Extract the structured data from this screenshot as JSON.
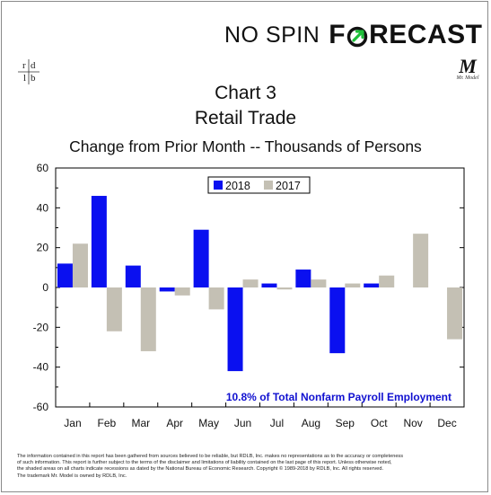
{
  "brand": {
    "nospin": "NO SPIN",
    "forecast_f": "F",
    "forecast_rest": "RECAST",
    "icon_name": "compass-arrow-icon",
    "accent_color": "#1fbf3a"
  },
  "rdlb_logo": {
    "r": "r",
    "d": "d",
    "l": "l",
    "b": "b"
  },
  "mr_model_logo": {
    "letter": "M",
    "caption": "Mr. Model"
  },
  "chart_data": {
    "type": "bar",
    "title": "Chart 3",
    "title2": "Retail Trade",
    "subtitle": "Change from Prior Month -- Thousands of Persons",
    "categories": [
      "Jan",
      "Feb",
      "Mar",
      "Apr",
      "May",
      "Jun",
      "Jul",
      "Aug",
      "Sep",
      "Oct",
      "Nov",
      "Dec"
    ],
    "series": [
      {
        "name": "2018",
        "color": "#0a10f0",
        "values": [
          12,
          46,
          11,
          -2,
          29,
          -42,
          2,
          9,
          -33,
          2,
          null,
          null
        ]
      },
      {
        "name": "2017",
        "color": "#c4c0b4",
        "values": [
          22,
          -22,
          -32,
          -4,
          -11,
          4,
          -1,
          4,
          2,
          6,
          27,
          -26
        ]
      }
    ],
    "ylim": [
      -60,
      60
    ],
    "yticks": [
      -60,
      -40,
      -20,
      0,
      20,
      40,
      60
    ],
    "grid": false,
    "legend_position": "top-center",
    "annotation": "10.8% of Total Nonfarm Payroll Employment",
    "annotation_color": "#1010d0"
  },
  "footer": {
    "line1": "The information contained in this report has been gathered from sources believed to be reliable, but RDLB, Inc. makes no representations as to the accuracy or completeness",
    "line2": "of such information. This report is further subject to the terms of the disclaimer and limitations of liability contained on the last page of this report. Unless otherwise noted,",
    "line3": "the shaded areas on all charts indicate recessions as dated by the National Bureau of Economic Research. Copyright © 1989-2018 by RDLB, Inc. All rights reserved.",
    "line4": "The trademark Mr. Model is owned by RDLB, Inc."
  }
}
